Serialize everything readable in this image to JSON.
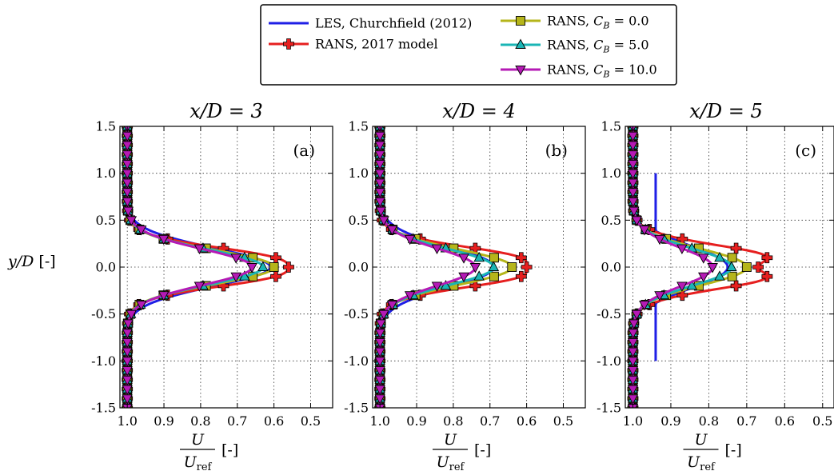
{
  "figure": {
    "ylabel_main": "y/D",
    "ylabel_unit": " [-]",
    "xlabel_num": "U",
    "xlabel_den": "U",
    "xlabel_den_sub": "ref",
    "xlabel_unit": " [-]"
  },
  "legend": {
    "placement": "top-center",
    "entries": [
      {
        "key": "les",
        "text": "LES, Churchfield (2012)"
      },
      {
        "key": "rans2017",
        "text": "RANS, 2017 model"
      },
      {
        "key": "cb0",
        "text_prefix": "RANS, ",
        "cb_symbol": "C",
        "cb_sub": "B",
        "cb_value": " = 0.0"
      },
      {
        "key": "cb5",
        "text_prefix": "RANS, ",
        "cb_symbol": "C",
        "cb_sub": "B",
        "cb_value": " = 5.0"
      },
      {
        "key": "cb10",
        "text_prefix": "RANS, ",
        "cb_symbol": "C",
        "cb_sub": "B",
        "cb_value": " = 10.0"
      }
    ]
  },
  "chart_data": [
    {
      "type": "line",
      "title": "x/D = 3",
      "panel_label": "(a)",
      "xlim": [
        1.02,
        0.44
      ],
      "ylim": [
        -1.5,
        1.5
      ],
      "xticks": [
        "1.0",
        "0.9",
        "0.8",
        "0.7",
        "0.6",
        "0.5"
      ],
      "yticks": [
        "-1.5",
        "-1.0",
        "-0.5",
        "0.0",
        "0.5",
        "1.0",
        "1.5"
      ],
      "grid": true,
      "series": [
        {
          "key": "les",
          "color": "#1f1fe6",
          "marker": "none",
          "min_u": 0.61,
          "width": 0.34,
          "lim": 0.95
        },
        {
          "key": "rans2017",
          "color": "#e61f1f",
          "marker": "plus",
          "min_u": 0.45,
          "width": 0.28,
          "lim": 1.5,
          "dip": 0.11
        },
        {
          "key": "cb0",
          "color": "#b5b51a",
          "marker": "square",
          "min_u": 0.6,
          "width": 0.3,
          "lim": 1.5
        },
        {
          "key": "cb5",
          "color": "#1ab5b5",
          "marker": "triangle-up",
          "min_u": 0.63,
          "width": 0.31,
          "lim": 1.5
        },
        {
          "key": "cb10",
          "color": "#b51ab5",
          "marker": "triangle-down",
          "min_u": 0.66,
          "width": 0.32,
          "lim": 1.5
        }
      ]
    },
    {
      "type": "line",
      "title": "x/D = 4",
      "panel_label": "(b)",
      "xlim": [
        1.02,
        0.44
      ],
      "ylim": [
        -1.5,
        1.5
      ],
      "xticks": [
        "1.0",
        "0.9",
        "0.8",
        "0.7",
        "0.6",
        "0.5"
      ],
      "yticks": [
        "-1.5",
        "-1.0",
        "-0.5",
        "0.0",
        "0.5",
        "1.0",
        "1.5"
      ],
      "grid": true,
      "series": [
        {
          "key": "les",
          "color": "#1f1fe6",
          "marker": "none",
          "min_u": 0.69,
          "width": 0.36,
          "lim": 1.0
        },
        {
          "key": "rans2017",
          "color": "#e61f1f",
          "marker": "plus",
          "min_u": 0.45,
          "width": 0.28,
          "lim": 1.5,
          "dip": 0.15
        },
        {
          "key": "cb0",
          "color": "#b5b51a",
          "marker": "square",
          "min_u": 0.64,
          "width": 0.31,
          "lim": 1.5
        },
        {
          "key": "cb5",
          "color": "#1ab5b5",
          "marker": "triangle-up",
          "min_u": 0.69,
          "width": 0.32,
          "lim": 1.5
        },
        {
          "key": "cb10",
          "color": "#b51ab5",
          "marker": "triangle-down",
          "min_u": 0.74,
          "width": 0.33,
          "lim": 1.5
        }
      ]
    },
    {
      "type": "line",
      "title": "x/D = 5",
      "panel_label": "(c)",
      "xlim": [
        1.02,
        0.47
      ],
      "ylim": [
        -1.5,
        1.5
      ],
      "xticks": [
        "1.0",
        "0.9",
        "0.8",
        "0.7",
        "0.6",
        "0.5"
      ],
      "yticks": [
        "-1.5",
        "-1.0",
        "-0.5",
        "0.0",
        "0.5",
        "1.0",
        "1.5"
      ],
      "grid": true,
      "series": [
        {
          "key": "les",
          "color": "#1f1fe6",
          "marker": "none",
          "min_u": 0.75,
          "width": 0.38,
          "lim": 1.0,
          "clip_u": 0.94
        },
        {
          "key": "rans2017",
          "color": "#e61f1f",
          "marker": "plus",
          "min_u": 0.47,
          "width": 0.3,
          "lim": 1.5,
          "dip": 0.2
        },
        {
          "key": "cb0",
          "color": "#b5b51a",
          "marker": "square",
          "min_u": 0.7,
          "width": 0.32,
          "lim": 1.5
        },
        {
          "key": "cb5",
          "color": "#1ab5b5",
          "marker": "triangle-up",
          "min_u": 0.74,
          "width": 0.33,
          "lim": 1.5
        },
        {
          "key": "cb10",
          "color": "#b51ab5",
          "marker": "triangle-down",
          "min_u": 0.79,
          "width": 0.34,
          "lim": 1.5
        }
      ]
    }
  ]
}
